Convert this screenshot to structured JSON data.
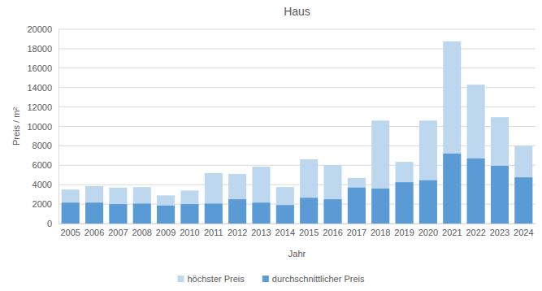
{
  "chart_data": {
    "type": "bar",
    "title": "Haus",
    "x_label": "Jahr",
    "y_label": "Preis / m²",
    "categories": [
      "2005",
      "2006",
      "2007",
      "2008",
      "2009",
      "2010",
      "2011",
      "2012",
      "2013",
      "2014",
      "2015",
      "2016",
      "2017",
      "2018",
      "2019",
      "2020",
      "2021",
      "2022",
      "2023",
      "2024"
    ],
    "series": [
      {
        "name": "höchster Preis",
        "color": "#bdd7ee",
        "values": [
          3500,
          3850,
          3700,
          3750,
          2900,
          3400,
          5200,
          5100,
          5850,
          3750,
          6600,
          6000,
          4700,
          10600,
          6350,
          10600,
          18750,
          14300,
          10950,
          8000
        ]
      },
      {
        "name": "durchschnittlicher Preis",
        "color": "#5b9bd5",
        "values": [
          2150,
          2150,
          2000,
          2050,
          1850,
          2000,
          2050,
          2500,
          2150,
          1900,
          2650,
          2500,
          3700,
          3600,
          4250,
          4450,
          7200,
          6700,
          5950,
          4750
        ]
      }
    ],
    "ylim": [
      0,
      20000
    ],
    "yticks": [
      0,
      2000,
      4000,
      6000,
      8000,
      10000,
      12000,
      14000,
      16000,
      18000,
      20000
    ],
    "grid": true,
    "legend": "bottom"
  }
}
